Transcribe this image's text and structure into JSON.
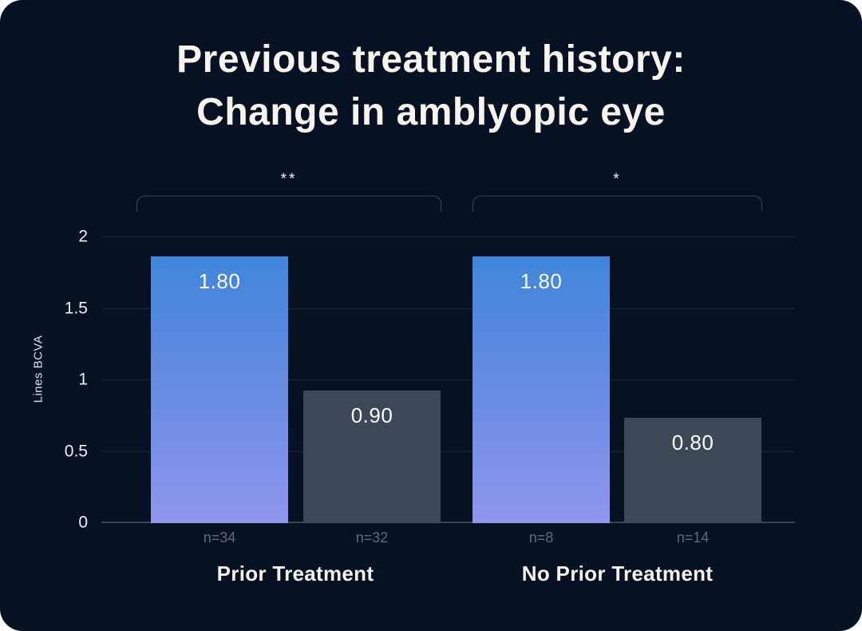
{
  "title": {
    "line1": "Previous treatment history:",
    "line2": "Change in amblyopic eye"
  },
  "chart_data": {
    "type": "bar",
    "title": "Previous treatment history: Change in amblyopic eye",
    "xlabel": "",
    "ylabel": "Lines BCVA",
    "ylim": [
      0,
      2
    ],
    "yticks": [
      0,
      0.5,
      1,
      1.5,
      2
    ],
    "grid": true,
    "legend": "none",
    "groups": [
      {
        "label": "Prior Treatment",
        "significance": "**",
        "bars": [
          {
            "value": 1.8,
            "label": "1.80",
            "n_label": "n=34",
            "style": "gradient-blue",
            "height_frac": 0.933
          },
          {
            "value": 0.9,
            "label": "0.90",
            "n_label": "n=32",
            "style": "slate",
            "height_frac": 0.464
          }
        ]
      },
      {
        "label": "No Prior Treatment",
        "significance": "*",
        "bars": [
          {
            "value": 1.8,
            "label": "1.80",
            "n_label": "n=8",
            "style": "gradient-blue",
            "height_frac": 0.933
          },
          {
            "value": 0.8,
            "label": "0.80",
            "n_label": "n=14",
            "style": "slate",
            "height_frac": 0.369
          }
        ]
      }
    ],
    "colors": {
      "background": "#061124",
      "title_text": "#f8f3ec",
      "bar_blue_top": "#4086db",
      "bar_blue_bottom": "#9096ee",
      "bar_slate": "#3d4857",
      "value_label": "#fdfdfe",
      "n_label": "#5f6a7a",
      "gridline": "#1d2a40",
      "axis_line": "#3a4557",
      "bracket_line": "#38445a"
    }
  }
}
